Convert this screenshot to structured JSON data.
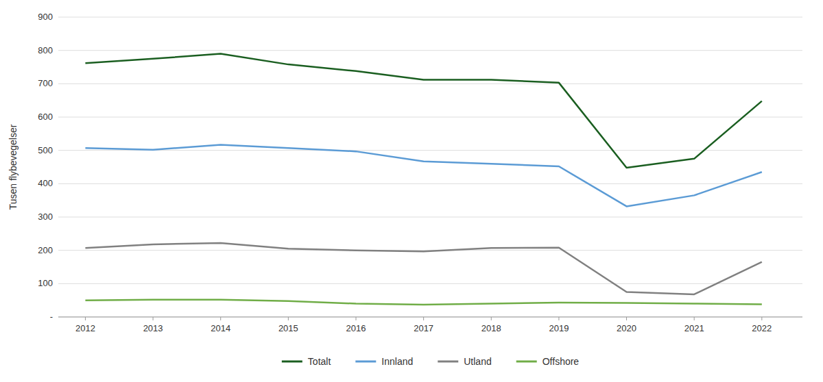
{
  "chart_data": {
    "type": "line",
    "ylabel": "Tusen flybevegelser",
    "x": [
      2012,
      2013,
      2014,
      2015,
      2016,
      2017,
      2018,
      2019,
      2020,
      2021,
      2022
    ],
    "series": [
      {
        "name": "Totalt",
        "color": "#1a5e20",
        "values": [
          762,
          775,
          790,
          758,
          738,
          712,
          712,
          703,
          448,
          475,
          648
        ]
      },
      {
        "name": "Innland",
        "color": "#5b9bd5",
        "values": [
          507,
          502,
          517,
          507,
          497,
          467,
          460,
          452,
          332,
          365,
          435
        ]
      },
      {
        "name": "Utland",
        "color": "#808080",
        "values": [
          207,
          218,
          222,
          205,
          200,
          197,
          207,
          208,
          75,
          68,
          165
        ]
      },
      {
        "name": "Offshore",
        "color": "#70ad47",
        "values": [
          50,
          52,
          52,
          48,
          40,
          37,
          40,
          43,
          42,
          40,
          38
        ]
      }
    ],
    "xlim": [
      2011.6,
      2022.6
    ],
    "xticks": [
      2012,
      2013,
      2014,
      2015,
      2016,
      2017,
      2018,
      2019,
      2020,
      2021,
      2022
    ],
    "ylim": [
      0,
      900
    ],
    "yticks": [
      {
        "value": 0,
        "label": "  -"
      },
      100,
      200,
      300,
      400,
      500,
      600,
      700,
      800,
      900
    ],
    "grid": true,
    "legend": "bottom"
  }
}
